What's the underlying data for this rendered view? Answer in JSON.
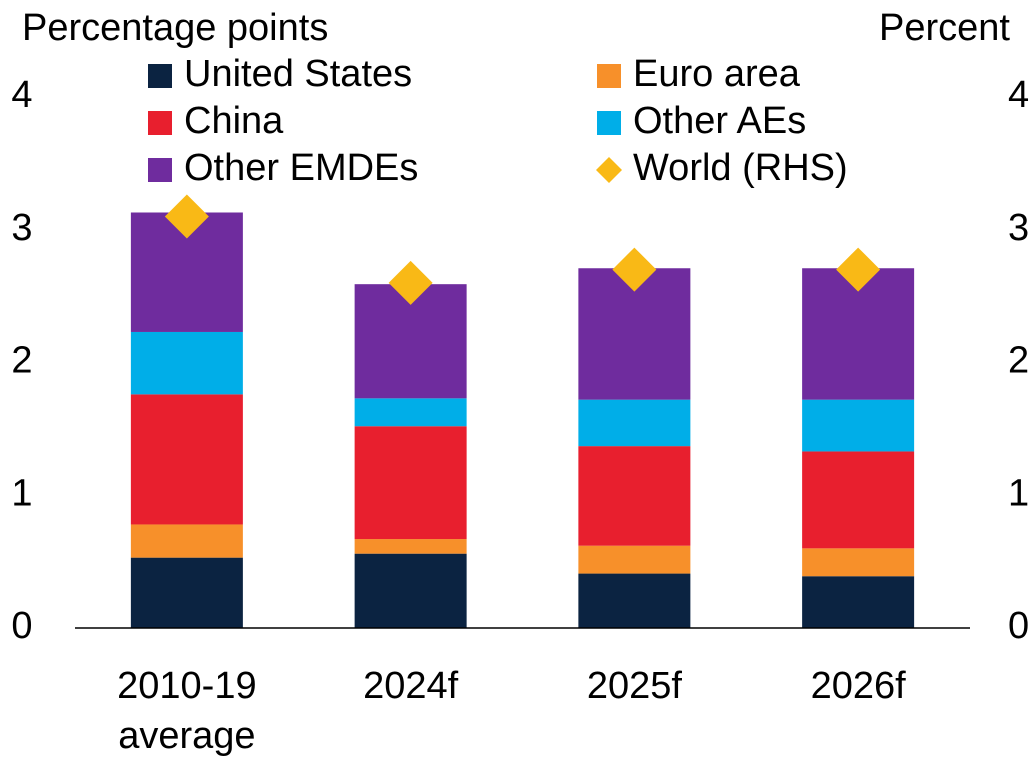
{
  "chart_data": {
    "type": "stacked_bar",
    "y_label": "Percentage points",
    "y2_label": "Percent",
    "categories": [
      "2010-19 average",
      "2024f",
      "2025f",
      "2026f"
    ],
    "series": [
      {
        "name": "United States",
        "color": "#0b2341",
        "values": [
          0.53,
          0.56,
          0.41,
          0.39
        ]
      },
      {
        "name": "Euro area",
        "color": "#f7902a",
        "values": [
          0.25,
          0.11,
          0.21,
          0.21
        ]
      },
      {
        "name": "China",
        "color": "#e81f2e",
        "values": [
          0.98,
          0.85,
          0.75,
          0.73
        ]
      },
      {
        "name": "Other AEs",
        "color": "#00aee8",
        "values": [
          0.47,
          0.21,
          0.35,
          0.39
        ]
      },
      {
        "name": "Other EMDEs",
        "color": "#6f2c9e",
        "values": [
          0.9,
          0.86,
          0.99,
          0.99
        ]
      },
      {
        "name": "World (RHS)",
        "color": "#f9b916",
        "axis": "y2",
        "marker": "diamond",
        "values": [
          3.1,
          2.6,
          2.7,
          2.7
        ]
      }
    ],
    "ylim": [
      0,
      4
    ],
    "yticks": [
      0,
      1,
      2,
      3,
      4
    ],
    "y2lim": [
      0,
      4
    ],
    "y2ticks": [
      0,
      1,
      2,
      3,
      4
    ],
    "grid": false
  }
}
